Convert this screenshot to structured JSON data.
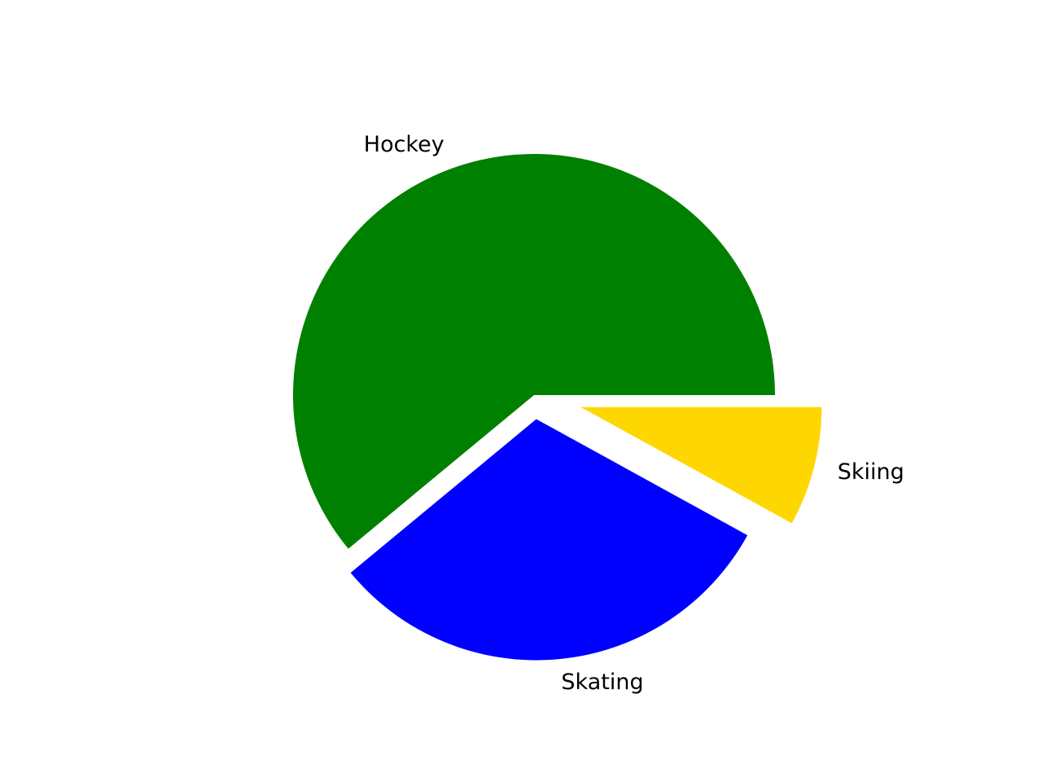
{
  "chart_data": {
    "type": "pie",
    "title": "",
    "slices": [
      {
        "label": "Hockey",
        "value": 61,
        "color": "#008000",
        "explode": 0
      },
      {
        "label": "Skating",
        "value": 31,
        "color": "#0000ff",
        "explode": 0.1
      },
      {
        "label": "Skiing",
        "value": 8,
        "color": "#ffd700",
        "explode": 0.2
      }
    ],
    "start_angle_deg": 0,
    "direction": "counterclockwise",
    "legend": "none"
  }
}
